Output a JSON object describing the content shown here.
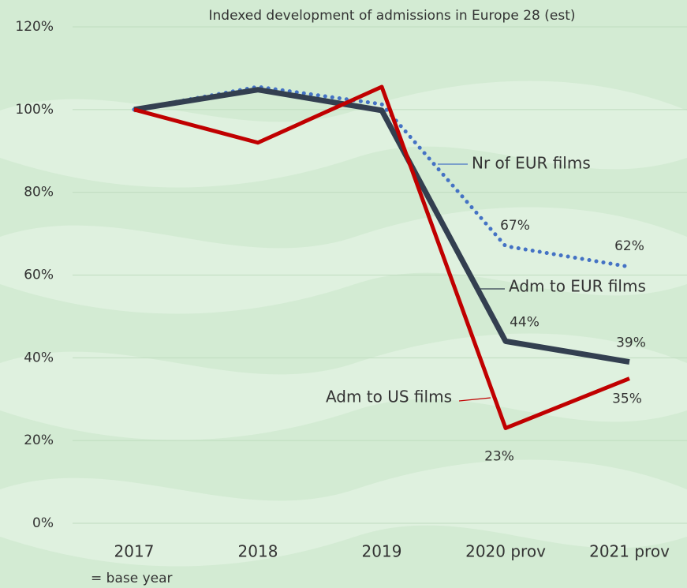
{
  "chart_data": {
    "type": "line",
    "title": "Indexed development of admissions in Europe 28 (est)",
    "categories": [
      "2017",
      "2018",
      "2019",
      "2020 prov",
      "2021 prov"
    ],
    "annotation": "= base year",
    "ylim": [
      0,
      120
    ],
    "yticks": [
      {
        "value": 0,
        "label": "0%"
      },
      {
        "value": 20,
        "label": "20%"
      },
      {
        "value": 40,
        "label": "40%"
      },
      {
        "value": 60,
        "label": "60%"
      },
      {
        "value": 80,
        "label": "80%"
      },
      {
        "value": 100,
        "label": "100%"
      },
      {
        "value": 120,
        "label": "120%"
      }
    ],
    "grid": true,
    "series": [
      {
        "name": "Nr of EUR films",
        "color": "#4472c4",
        "style": "dotted",
        "values": [
          100,
          105.5,
          101.3,
          67,
          62
        ],
        "value_labels": [
          null,
          null,
          null,
          "67%",
          "62%"
        ]
      },
      {
        "name": "Adm to EUR films",
        "color": "#333f50",
        "style": "solid",
        "values": [
          100,
          104.8,
          99.8,
          44,
          39
        ],
        "value_labels": [
          null,
          null,
          null,
          "44%",
          "39%"
        ]
      },
      {
        "name": "Adm to US films",
        "color": "#c00000",
        "style": "solid",
        "values": [
          100,
          92,
          105.5,
          23,
          35
        ],
        "value_labels": [
          null,
          null,
          null,
          "23%",
          "35%"
        ]
      }
    ]
  }
}
